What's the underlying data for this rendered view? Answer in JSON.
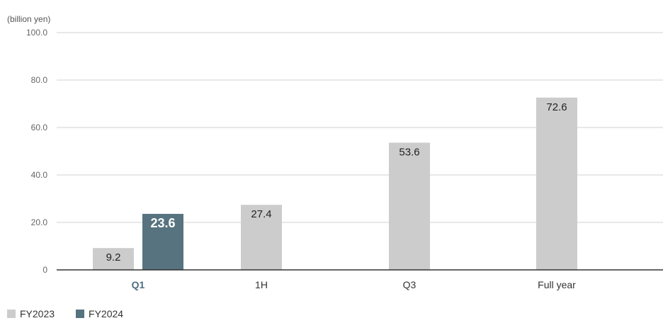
{
  "chart_data": {
    "type": "bar",
    "unit_label": "(billion yen)",
    "categories": [
      "Q1",
      "1H",
      "Q3",
      "Full year"
    ],
    "highlight_category": "Q1",
    "series": [
      {
        "name": "FY2023",
        "color": "#cccccc",
        "values": [
          9.2,
          27.4,
          53.6,
          72.6
        ],
        "labels": [
          "9.2",
          "27.4",
          "53.6",
          "72.6"
        ]
      },
      {
        "name": "FY2024",
        "color": "#56737f",
        "values": [
          23.6,
          null,
          null,
          null
        ],
        "labels": [
          "23.6",
          null,
          null,
          null
        ]
      }
    ],
    "ylim": [
      0,
      100
    ],
    "yticks": [
      0,
      20,
      40,
      60,
      80,
      100
    ],
    "ytick_labels": [
      "0",
      "20.0",
      "40.0",
      "60.0",
      "80.0",
      "100.0"
    ],
    "grid": true,
    "legend_position": "bottom-left"
  }
}
